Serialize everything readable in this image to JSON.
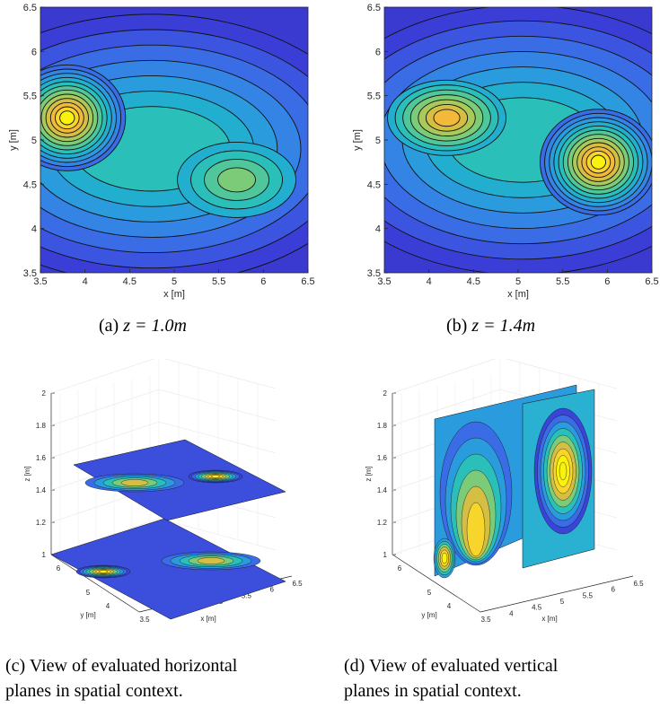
{
  "chart_data": [
    {
      "id": "a",
      "type": "contour",
      "xlabel": "x [m]",
      "ylabel": "y [m]",
      "xlim": [
        3.5,
        6.5
      ],
      "ylim": [
        3.5,
        6.5
      ],
      "xticks": [
        "3.5",
        "4",
        "4.5",
        "5",
        "5.5",
        "6",
        "6.5"
      ],
      "yticks": [
        "3.5",
        "4",
        "4.5",
        "5",
        "5.5",
        "6",
        "6.5"
      ],
      "peaks": [
        {
          "x": 3.8,
          "y": 5.25,
          "level": "max"
        },
        {
          "x": 5.7,
          "y": 4.55,
          "level": "local"
        }
      ],
      "caption_label": "(a)",
      "caption_math": "z = 1.0m"
    },
    {
      "id": "b",
      "type": "contour",
      "xlabel": "x [m]",
      "ylabel": "y [m]",
      "xlim": [
        3.5,
        6.5
      ],
      "ylim": [
        3.5,
        6.5
      ],
      "xticks": [
        "3.5",
        "4",
        "4.5",
        "5",
        "5.5",
        "6",
        "6.5"
      ],
      "yticks": [
        "3.5",
        "4",
        "4.5",
        "5",
        "5.5",
        "6",
        "6.5"
      ],
      "peaks": [
        {
          "x": 5.9,
          "y": 4.75,
          "level": "max"
        },
        {
          "x": 4.2,
          "y": 5.25,
          "level": "local"
        }
      ],
      "caption_label": "(b)",
      "caption_math": "z = 1.4m"
    },
    {
      "id": "c",
      "type": "3d-contour-planes",
      "xlabel": "x [m]",
      "ylabel": "y [m]",
      "zlabel": "z [m]",
      "zticks": [
        "1",
        "1.2",
        "1.4",
        "1.6",
        "1.8",
        "2"
      ],
      "xticks": [
        "3.5",
        "4",
        "4.5",
        "5",
        "5.5",
        "6",
        "6.5"
      ],
      "yticks": [
        "5",
        "6",
        "4"
      ],
      "planes": [
        "z=1.0",
        "z=1.4"
      ],
      "caption": "(c) View of evaluated horizontal planes in spatial context."
    },
    {
      "id": "d",
      "type": "3d-contour-planes",
      "xlabel": "x [m]",
      "ylabel": "y [m]",
      "zlabel": "z [m]",
      "zticks": [
        "1",
        "1.2",
        "1.4",
        "1.6",
        "1.8",
        "2"
      ],
      "xticks": [
        "3.5",
        "4",
        "4.5",
        "5",
        "5.5",
        "6",
        "6.5"
      ],
      "yticks": [
        "5",
        "6",
        "4"
      ],
      "planes": [
        "vertical-1",
        "vertical-2"
      ],
      "caption": "(d) View of evaluated vertical planes in spatial context."
    }
  ],
  "captions": {
    "a_label": "(a)",
    "a_math": "z = 1.0m",
    "b_label": "(b)",
    "b_math": "z = 1.4m",
    "c_line1": "(c) View of evaluated horizontal",
    "c_line2": "planes in spatial context.",
    "d_line1": "(d) View of evaluated vertical",
    "d_line2": "planes in spatial context."
  },
  "colors": {
    "low": "#3a3ad0",
    "mid": "#2aa8d8",
    "midhigh": "#56c46a",
    "high": "#f4b73c",
    "peak": "#f8f20e"
  }
}
